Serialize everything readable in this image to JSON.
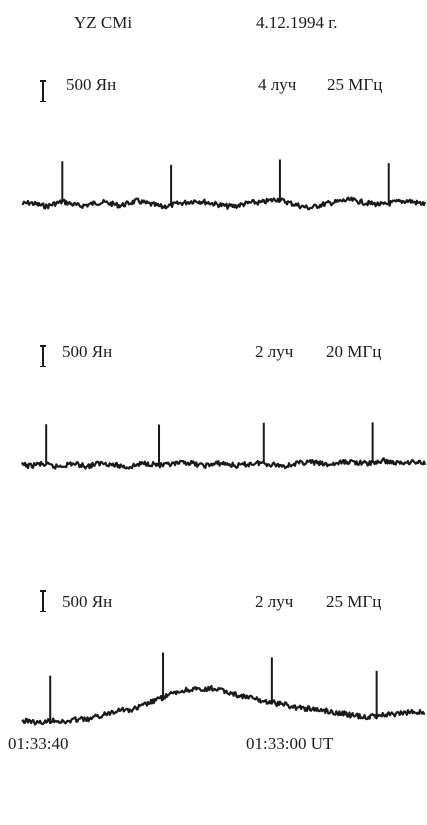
{
  "header": {
    "source": "YZ CMi",
    "date": "4.12.1994 г."
  },
  "chart_data": [
    {
      "type": "line",
      "scale_label": "500 Ян",
      "beam_label": "4 луч",
      "freq_label": "25 МГц",
      "series": [
        {
          "values": [
            0.02,
            0.05,
            0.0,
            -0.04,
            0.03,
            0.08,
            0.02,
            -0.03,
            0.0,
            0.05,
            0.06,
            0.02,
            -0.02,
            0.04,
            0.1,
            0.04,
            0.0,
            -0.05,
            -0.02,
            0.03,
            0.06,
            0.1,
            0.08,
            0.04,
            0.0,
            -0.04,
            -0.03,
            0.02,
            0.06,
            0.05,
            0.1,
            0.14,
            0.08,
            0.02,
            -0.04,
            -0.08,
            -0.02,
            0.03,
            0.06,
            0.1,
            0.12,
            0.08,
            0.04,
            0.02,
            0.0,
            0.05,
            0.08,
            0.1,
            0.05,
            0.02
          ]
        }
      ],
      "marker_positions": [
        0.1,
        0.37,
        0.64,
        0.91
      ]
    },
    {
      "type": "line",
      "scale_label": "500 Ян",
      "beam_label": "2 луч",
      "freq_label": "20 МГц",
      "series": [
        {
          "values": [
            0.0,
            -0.03,
            0.02,
            0.0,
            -0.05,
            -0.02,
            0.03,
            0.0,
            -0.04,
            0.02,
            0.05,
            0.0,
            -0.03,
            -0.06,
            0.0,
            0.04,
            0.02,
            -0.02,
            0.0,
            0.03,
            0.06,
            0.02,
            -0.02,
            0.0,
            0.04,
            0.02,
            -0.03,
            0.0,
            0.03,
            0.05,
            0.02,
            0.0,
            -0.03,
            0.02,
            0.05,
            0.07,
            0.04,
            0.0,
            0.02,
            0.06,
            0.08,
            0.05,
            0.03,
            0.06,
            0.1,
            0.06,
            0.04,
            0.08,
            0.06,
            0.05
          ]
        }
      ],
      "marker_positions": [
        0.06,
        0.34,
        0.6,
        0.87
      ]
    },
    {
      "type": "line",
      "scale_label": "500 Ян",
      "beam_label": "2 луч",
      "freq_label": "25 МГц",
      "series": [
        {
          "values": [
            -0.1,
            -0.08,
            -0.14,
            -0.1,
            -0.06,
            -0.12,
            -0.08,
            -0.04,
            -0.06,
            0.0,
            0.05,
            0.12,
            0.18,
            0.14,
            0.2,
            0.28,
            0.35,
            0.42,
            0.5,
            0.55,
            0.6,
            0.62,
            0.58,
            0.64,
            0.6,
            0.55,
            0.5,
            0.45,
            0.42,
            0.36,
            0.34,
            0.3,
            0.28,
            0.22,
            0.2,
            0.18,
            0.16,
            0.14,
            0.1,
            0.08,
            0.04,
            0.02,
            0.0,
            0.02,
            0.06,
            0.05,
            0.08,
            0.1,
            0.12,
            0.1
          ]
        }
      ],
      "marker_positions": [
        0.07,
        0.35,
        0.62,
        0.88
      ]
    }
  ],
  "axis": {
    "time_left": "01:33:40",
    "time_right": "01:33:00  UT"
  },
  "colors": {
    "trace": "#1a1a1a"
  }
}
